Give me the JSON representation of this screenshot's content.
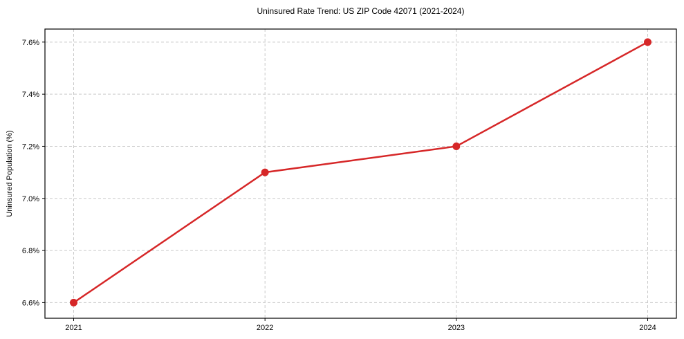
{
  "chart_data": {
    "type": "line",
    "title": "Uninsured Rate Trend: US ZIP Code 42071 (2021-2024)",
    "xlabel": "",
    "ylabel": "Uninsured Population (%)",
    "x": [
      2021,
      2022,
      2023,
      2024
    ],
    "values": [
      6.6,
      7.1,
      7.2,
      7.6
    ],
    "xtick_labels": [
      "2021",
      "2022",
      "2023",
      "2024"
    ],
    "xtick_values": [
      2021,
      2022,
      2023,
      2024
    ],
    "ytick_labels": [
      "6.6%",
      "6.8%",
      "7.0%",
      "7.2%",
      "7.4%",
      "7.6%"
    ],
    "ytick_values": [
      6.6,
      6.8,
      7.0,
      7.2,
      7.4,
      7.6
    ],
    "xlim": [
      2020.85,
      2024.15
    ],
    "ylim": [
      6.54,
      7.65
    ],
    "grid": true,
    "grid_style": "dashed",
    "legend": false,
    "line_color": "#d62728",
    "marker": "circle",
    "grid_color": "#c9c9c9",
    "spine_color": "#000000"
  }
}
